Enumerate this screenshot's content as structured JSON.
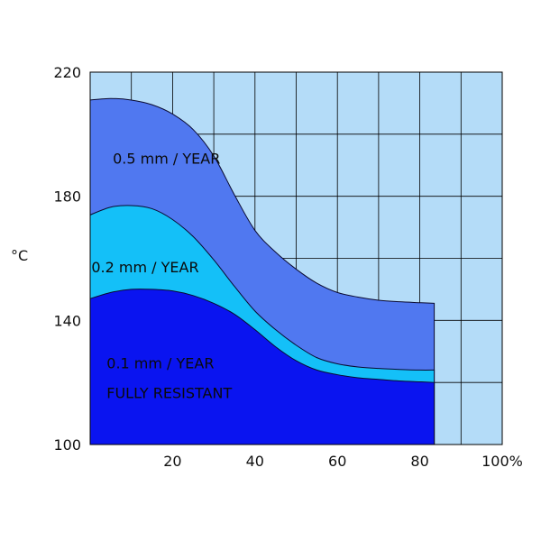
{
  "chart_data": {
    "type": "area",
    "title": "",
    "xlabel": "",
    "ylabel": "°C",
    "xlim": [
      0,
      100
    ],
    "ylim": [
      100,
      220
    ],
    "x_ticks": [
      {
        "value": 20,
        "label": "20"
      },
      {
        "value": 40,
        "label": "40"
      },
      {
        "value": 60,
        "label": "60"
      },
      {
        "value": 80,
        "label": "80"
      },
      {
        "value": 100,
        "label": "100%"
      }
    ],
    "y_ticks": [
      {
        "value": 100,
        "label": "100"
      },
      {
        "value": 140,
        "label": "140"
      },
      {
        "value": 180,
        "label": "180"
      },
      {
        "value": 220,
        "label": "220"
      }
    ],
    "grid": true,
    "colors": {
      "background": "#b4dcf8",
      "grid": "#000000",
      "series": [
        "#0a14f0",
        "#14c0f8",
        "#5078f0"
      ]
    },
    "series": [
      {
        "name": "0.1 mm / YEAR",
        "x": [
          0,
          5,
          10,
          15,
          20,
          25,
          30,
          35,
          40,
          45,
          50,
          55,
          60,
          65,
          70,
          75,
          80,
          83.5
        ],
        "y": [
          147,
          149,
          150,
          150,
          149.5,
          148,
          145.5,
          142,
          137,
          131.5,
          127,
          124,
          122.5,
          121.5,
          121,
          120.5,
          120.2,
          120
        ]
      },
      {
        "name": "0.2 mm / YEAR",
        "x": [
          0,
          5,
          10,
          15,
          20,
          25,
          30,
          35,
          40,
          45,
          50,
          55,
          60,
          65,
          70,
          75,
          80,
          83.5
        ],
        "y": [
          174,
          176.5,
          177,
          176,
          172.5,
          167,
          159.5,
          151,
          143,
          137,
          132,
          128,
          126,
          125,
          124.5,
          124.2,
          124,
          124
        ]
      },
      {
        "name": "0.5 mm / YEAR",
        "x": [
          0,
          5,
          10,
          15,
          20,
          25,
          30,
          35,
          40,
          45,
          50,
          55,
          60,
          65,
          70,
          75,
          80,
          83.5
        ],
        "y": [
          211,
          211.5,
          211,
          209.5,
          206.5,
          201.5,
          193,
          180.5,
          169,
          162,
          156.5,
          152,
          149,
          147.5,
          146.5,
          146,
          145.7,
          145.5
        ]
      }
    ],
    "annotations": [
      {
        "text": "0.5 mm / YEAR",
        "x": 5.5,
        "y": 190.5
      },
      {
        "text": "0.2 mm / YEAR",
        "x": 0.3,
        "y": 155.5
      },
      {
        "text": "0.1 mm / YEAR",
        "x": 4,
        "y": 124.5
      },
      {
        "text": "FULLY RESISTANT",
        "x": 4,
        "y": 115
      }
    ]
  }
}
